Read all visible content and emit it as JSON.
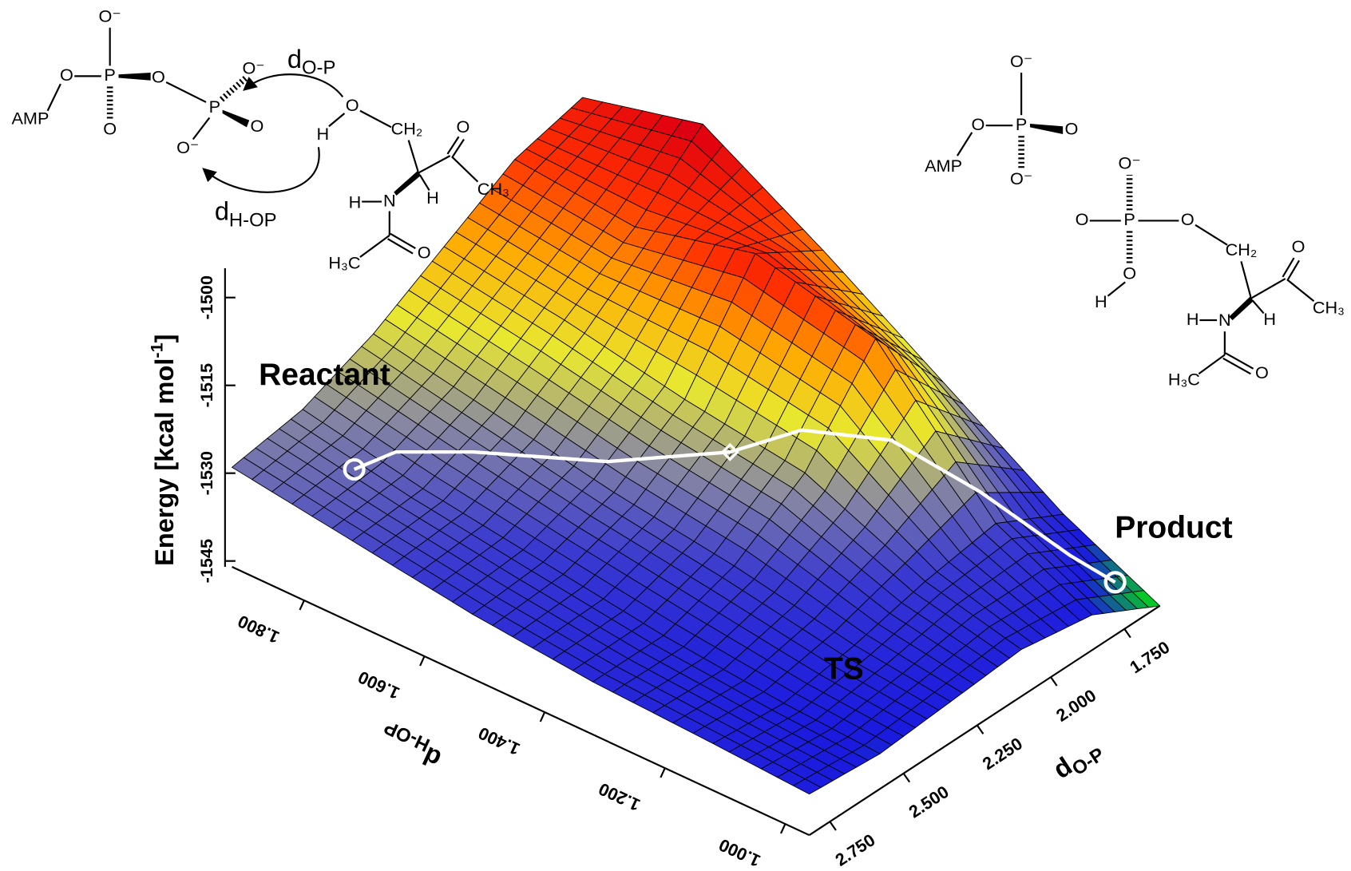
{
  "chart_data": {
    "type": "surface",
    "z_label": {
      "text": "Energy [kcal mol",
      "sup": "-1",
      "end": "]"
    },
    "x_label": {
      "text": "d",
      "sub": "O-P"
    },
    "y_label": {
      "text": "d",
      "sub": "H-OP"
    },
    "x": [
      2.82,
      2.58,
      2.34,
      2.1,
      1.86,
      1.63
    ],
    "y": [
      1.92,
      1.72,
      1.52,
      1.32,
      1.12,
      0.96
    ],
    "z": [
      [
        -1529,
        -1527,
        -1522,
        -1515,
        -1508,
        -1505
      ],
      [
        -1532,
        -1531,
        -1526,
        -1518,
        -1510,
        -1500
      ],
      [
        -1535,
        -1534,
        -1530,
        -1522,
        -1505,
        -1512
      ],
      [
        -1537,
        -1537,
        -1533,
        -1525,
        -1510,
        -1525
      ],
      [
        -1538,
        -1539,
        -1537,
        -1534,
        -1532,
        -1538
      ],
      [
        -1539,
        -1540,
        -1539,
        -1538,
        -1540,
        -1546
      ]
    ],
    "xlim": [
      1.63,
      2.82
    ],
    "ylim": [
      0.96,
      1.92
    ],
    "zlim": [
      -1546,
      -1495
    ],
    "xticks": [
      {
        "value": 1.75,
        "label": "1.750"
      },
      {
        "value": 2.0,
        "label": "2.000"
      },
      {
        "value": 2.25,
        "label": "2.250"
      },
      {
        "value": 2.5,
        "label": "2.500"
      },
      {
        "value": 2.75,
        "label": "2.750"
      }
    ],
    "yticks": [
      {
        "value": 1.8,
        "label": "1.800"
      },
      {
        "value": 1.6,
        "label": "1.600"
      },
      {
        "value": 1.4,
        "label": "1.400"
      },
      {
        "value": 1.2,
        "label": "1.200"
      },
      {
        "value": 1.0,
        "label": "1.000"
      }
    ],
    "zticks": [
      -1545,
      -1530,
      -1515,
      -1500
    ],
    "colors": [
      "#00ee00",
      "#1a1adf",
      "#3a3ad0",
      "#8c8ca0",
      "#e8e830",
      "#ffaa00",
      "#ff3000",
      "#e00010",
      "#800080"
    ],
    "mesh_color": "#000000",
    "path": {
      "x": [
        2.65,
        2.55,
        2.45,
        2.3,
        2.15,
        2.05,
        1.95,
        1.85,
        1.75,
        1.7
      ],
      "y": [
        1.8,
        1.78,
        1.7,
        1.55,
        1.42,
        1.35,
        1.25,
        1.15,
        1.05,
        1.0
      ],
      "color": "#ffffff"
    },
    "annotations": [
      "Reactant",
      "TS",
      "Product"
    ]
  },
  "reactant_structure": {
    "atoms": [
      "O⁻",
      "O",
      "P",
      "O",
      "AMP",
      "O",
      "P",
      "O⁻",
      "O",
      "O⁻",
      "O",
      "H",
      "CH₂",
      "O",
      "CH₃",
      "H",
      "H",
      "N",
      "H₃C",
      "O"
    ],
    "arrows": [
      {
        "text": "d",
        "sub": "O-P"
      },
      {
        "text": "d",
        "sub": "H-OP"
      }
    ]
  },
  "product_structure": {
    "atoms": [
      "O⁻",
      "O",
      "P",
      "O",
      "AMP",
      "O⁻",
      "O⁻",
      "O",
      "P",
      "O",
      "O",
      "H",
      "CH₂",
      "O",
      "CH₃",
      "H",
      "H",
      "N",
      "H₃C",
      "O"
    ]
  }
}
